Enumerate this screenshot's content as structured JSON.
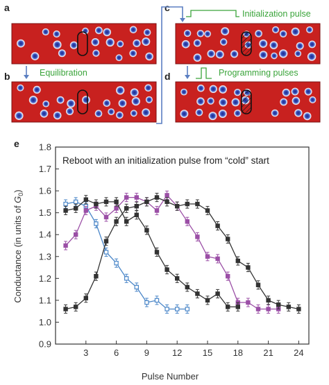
{
  "panels": {
    "a": {
      "label": "a"
    },
    "b": {
      "label": "b",
      "caption": "Equilibration"
    },
    "c": {
      "label": "c",
      "caption": "Initialization pulse"
    },
    "d": {
      "label": "d",
      "caption": "Programming pulses"
    },
    "e": {
      "label": "e"
    }
  },
  "colors": {
    "lattice_red": "#c8211f",
    "lattice_spot": "#2c3da0",
    "caption_green": "#3aa43a",
    "arrow_blue": "#5b7fc2",
    "series_black": "#222222",
    "series_purple": "#9b4fa6",
    "series_lightblue": "#4a86c8"
  },
  "chart_data": {
    "type": "line",
    "annotation": "Reboot with an initialization pulse from “cold” start",
    "xlabel": "Pulse Number",
    "ylabel": "Conductance (in units of G0)",
    "ylabel_parts": {
      "main": "Conductance (in units of ",
      "symbol": "G",
      "sub": "0",
      "close": ")"
    },
    "xlim": [
      0,
      25
    ],
    "ylim": [
      0.9,
      1.8
    ],
    "xticks": [
      3,
      6,
      9,
      12,
      15,
      18,
      21,
      24
    ],
    "yticks": [
      0.9,
      1.0,
      1.1,
      1.2,
      1.3,
      1.4,
      1.5,
      1.6,
      1.7,
      1.8
    ],
    "grid": false,
    "series": [
      {
        "color": "#4a86c8",
        "marker": "square-open",
        "x": [
          1,
          2,
          3,
          4,
          5,
          6,
          7,
          8,
          9,
          10,
          11,
          12,
          13
        ],
        "y": [
          1.54,
          1.55,
          1.53,
          1.45,
          1.32,
          1.27,
          1.2,
          1.16,
          1.09,
          1.1,
          1.06,
          1.06,
          1.06
        ]
      },
      {
        "color": "#9b4fa6",
        "marker": "square-filled",
        "x": [
          1,
          2,
          3,
          4,
          5,
          6,
          7,
          8,
          9,
          10,
          11,
          12,
          13,
          14,
          15,
          16,
          17,
          18,
          19,
          20,
          21,
          22
        ],
        "y": [
          1.35,
          1.4,
          1.51,
          1.53,
          1.48,
          1.52,
          1.57,
          1.57,
          1.55,
          1.51,
          1.58,
          1.53,
          1.46,
          1.39,
          1.3,
          1.29,
          1.21,
          1.09,
          1.09,
          1.06,
          1.06,
          1.06
        ]
      },
      {
        "color": "#333333",
        "marker": "square-filled",
        "x": [
          1,
          2,
          3,
          4,
          5,
          6,
          7,
          8,
          9,
          10,
          11,
          12,
          13,
          14,
          15,
          16,
          17,
          18
        ],
        "y": [
          1.51,
          1.52,
          1.56,
          1.54,
          1.55,
          1.55,
          1.46,
          1.49,
          1.42,
          1.32,
          1.24,
          1.2,
          1.16,
          1.13,
          1.1,
          1.13,
          1.07,
          1.07
        ]
      },
      {
        "color": "#333333",
        "marker": "square-filled",
        "x": [
          1,
          2,
          3,
          4,
          5,
          6,
          7,
          8,
          9,
          10,
          11,
          12,
          13,
          14,
          15,
          16,
          17,
          18,
          19,
          20,
          21,
          22,
          23,
          24
        ],
        "y": [
          1.06,
          1.07,
          1.11,
          1.21,
          1.37,
          1.46,
          1.52,
          1.53,
          1.55,
          1.57,
          1.55,
          1.53,
          1.54,
          1.54,
          1.51,
          1.44,
          1.38,
          1.28,
          1.25,
          1.17,
          1.1,
          1.08,
          1.07,
          1.06
        ]
      }
    ]
  }
}
